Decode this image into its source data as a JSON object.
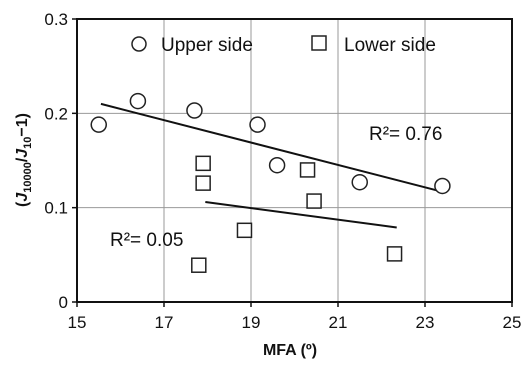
{
  "chart_data": {
    "type": "scatter",
    "xlabel": "MFA (º)",
    "ylabel_parts": {
      "open": "(",
      "j1": "J",
      "j1_sub": "10000",
      "slash": "/",
      "j2": "J",
      "j2_sub": "10",
      "tail": "−1)"
    },
    "xlim": [
      15,
      25
    ],
    "ylim": [
      0,
      0.3
    ],
    "xticks": [
      15,
      17,
      19,
      21,
      23,
      25
    ],
    "yticks": [
      0,
      0.1,
      0.2,
      0.3
    ],
    "xtick_labels": [
      "15",
      "17",
      "19",
      "21",
      "23",
      "25"
    ],
    "ytick_labels": [
      "0",
      "0.1",
      "0.2",
      "0.3"
    ],
    "grid": true,
    "legend_placement": "top",
    "series": [
      {
        "name": "Upper side",
        "marker": "circle",
        "points": [
          {
            "x": 15.5,
            "y": 0.188
          },
          {
            "x": 16.4,
            "y": 0.213
          },
          {
            "x": 17.7,
            "y": 0.203
          },
          {
            "x": 19.15,
            "y": 0.188
          },
          {
            "x": 19.6,
            "y": 0.145
          },
          {
            "x": 21.5,
            "y": 0.127
          },
          {
            "x": 23.4,
            "y": 0.123
          }
        ],
        "fit": {
          "x": [
            15.55,
            23.3
          ],
          "y": [
            0.21,
            0.118
          ]
        },
        "r2_label": "R²= 0.76"
      },
      {
        "name": "Lower side",
        "marker": "square",
        "points": [
          {
            "x": 17.9,
            "y": 0.147
          },
          {
            "x": 17.9,
            "y": 0.126
          },
          {
            "x": 20.3,
            "y": 0.14
          },
          {
            "x": 20.45,
            "y": 0.107
          },
          {
            "x": 18.85,
            "y": 0.076
          },
          {
            "x": 17.8,
            "y": 0.039
          },
          {
            "x": 22.3,
            "y": 0.051
          }
        ],
        "fit": {
          "x": [
            17.95,
            22.35
          ],
          "y": [
            0.106,
            0.079
          ]
        },
        "r2_label": "R²= 0.05"
      }
    ]
  },
  "colors": {
    "axis": "#111111",
    "grid": "#999999",
    "marker_stroke": "#222222",
    "background": "#ffffff"
  }
}
